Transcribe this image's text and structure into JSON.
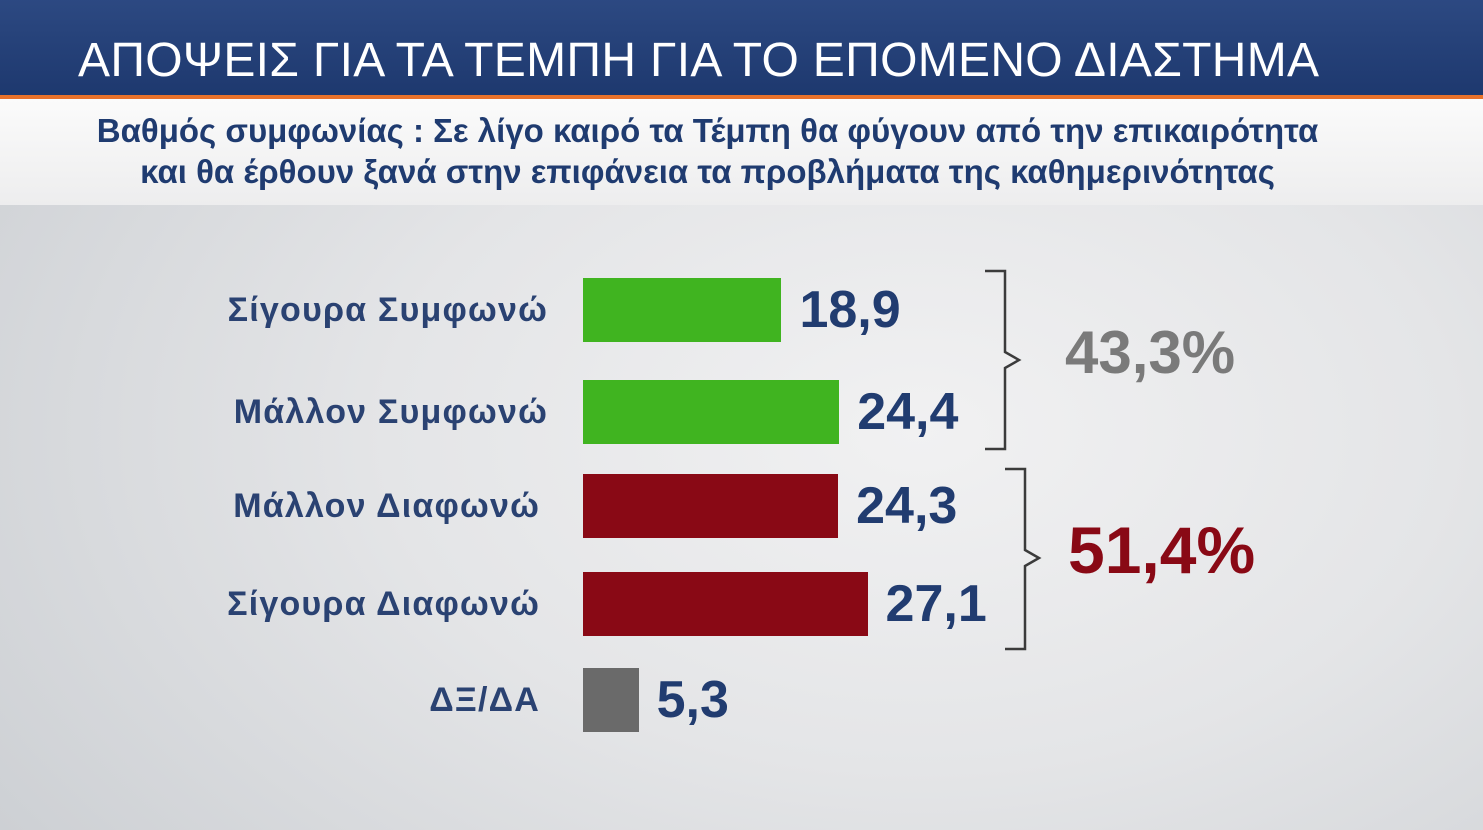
{
  "chart_data": {
    "type": "bar",
    "orientation": "horizontal",
    "title": "ΑΠΟΨΕΙΣ ΓΙΑ ΤΑ ΤΕΜΠΗ ΓΙΑ ΤΟ ΕΠΟΜΕΝΟ ΔΙΑΣΤΗΜΑ",
    "subtitle": [
      "Βαθμός συμφωνίας : Σε λίγο καιρό τα Τέμπη θα φύγουν από την επικαιρότητα",
      "και θα έρθουν ξανά στην επιφάνεια τα προβλήματα της καθημερινότητας"
    ],
    "categories": [
      "Σίγουρα Συμφωνώ",
      "Μάλλον Συμφωνώ",
      "Μάλλον Διαφωνώ",
      "Σίγουρα Διαφωνώ",
      "ΔΞ/ΔΑ"
    ],
    "values": [
      18.9,
      24.4,
      24.3,
      27.1,
      5.3
    ],
    "value_labels": [
      "18,9",
      "24,4",
      "24,3",
      "27,1",
      "5,3"
    ],
    "bar_colors": [
      "#40b420",
      "#40b420",
      "#890915",
      "#890915",
      "#6a6a6a"
    ],
    "groups": [
      {
        "label": "43,3%",
        "value": 43.3,
        "members": [
          0,
          1
        ],
        "color": "#7a7a7a"
      },
      {
        "label": "51,4%",
        "value": 51.4,
        "members": [
          2,
          3
        ],
        "color": "#890915"
      }
    ],
    "grid": false
  },
  "colors": {
    "header_bg": "#213f7b",
    "header_text": "#ffffff",
    "accent_line": "#e9722a",
    "subtitle_text": "#1f3b70",
    "label_text": "#2a4272",
    "value_text": "#213c70",
    "bracket": "#3b3b3b"
  }
}
